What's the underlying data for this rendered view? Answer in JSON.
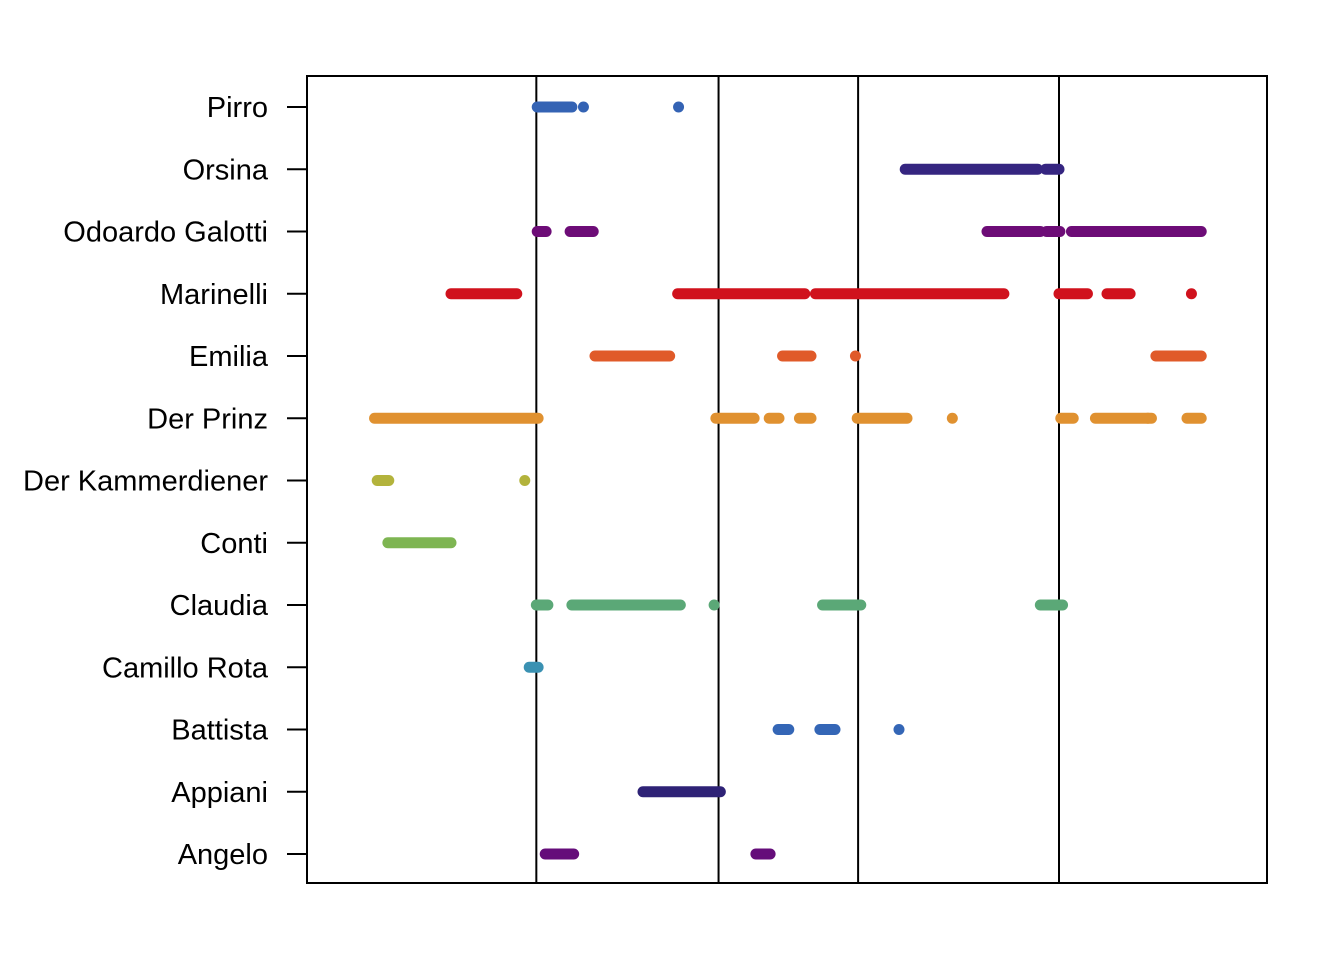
{
  "chart_data": {
    "type": "scatter",
    "title": "",
    "xlabel": "",
    "ylabel": "",
    "xlim": [
      0,
      1
    ],
    "grid": false,
    "legend": "none",
    "act_boundaries": [
      0.218,
      0.423,
      0.58,
      0.806
    ],
    "categories": [
      "Angelo",
      "Appiani",
      "Battista",
      "Camillo Rota",
      "Claudia",
      "Conti",
      "Der Kammerdiener",
      "Der Prinz",
      "Emilia",
      "Marinelli",
      "Odoardo Galotti",
      "Orsina",
      "Pirro"
    ],
    "series": [
      {
        "category": "Angelo",
        "color": "#650d7a",
        "segments": [
          [
            0.228,
            0.26
          ],
          [
            0.465,
            0.481
          ]
        ],
        "points": []
      },
      {
        "category": "Appiani",
        "color": "#2e2276",
        "segments": [
          [
            0.338,
            0.425
          ]
        ],
        "points": []
      },
      {
        "category": "Battista",
        "color": "#3466b6",
        "segments": [
          [
            0.49,
            0.502
          ],
          [
            0.537,
            0.554
          ]
        ],
        "points": [
          0.626
        ]
      },
      {
        "category": "Camillo Rota",
        "color": "#3a91b2",
        "segments": [
          [
            0.21,
            0.22
          ]
        ],
        "points": []
      },
      {
        "category": "Claudia",
        "color": "#5ba877",
        "segments": [
          [
            0.218,
            0.231
          ],
          [
            0.258,
            0.38
          ],
          [
            0.54,
            0.583
          ],
          [
            0.785,
            0.81
          ]
        ],
        "points": [
          0.418
        ]
      },
      {
        "category": "Conti",
        "color": "#7eb552",
        "segments": [
          [
            0.051,
            0.122
          ]
        ],
        "points": []
      },
      {
        "category": "Der Kammerdiener",
        "color": "#b3b33c",
        "segments": [
          [
            0.039,
            0.052
          ]
        ],
        "points": [
          0.205
        ]
      },
      {
        "category": "Der Prinz",
        "color": "#e09130",
        "segments": [
          [
            0.036,
            0.22
          ],
          [
            0.42,
            0.463
          ],
          [
            0.48,
            0.491
          ],
          [
            0.514,
            0.527
          ],
          [
            0.579,
            0.635
          ],
          [
            0.808,
            0.822
          ],
          [
            0.847,
            0.91
          ],
          [
            0.95,
            0.966
          ]
        ],
        "points": [
          0.686,
          0.906
        ]
      },
      {
        "category": "Emilia",
        "color": "#e05a29",
        "segments": [
          [
            0.284,
            0.368
          ],
          [
            0.495,
            0.527
          ],
          [
            0.915,
            0.966
          ]
        ],
        "points": [
          0.577
        ]
      },
      {
        "category": "Marinelli",
        "color": "#d0121d",
        "segments": [
          [
            0.122,
            0.196
          ],
          [
            0.377,
            0.52
          ],
          [
            0.532,
            0.744
          ],
          [
            0.806,
            0.838
          ],
          [
            0.86,
            0.886
          ]
        ],
        "points": [
          0.955
        ]
      },
      {
        "category": "Odoardo Galotti",
        "color": "#6d0c77",
        "segments": [
          [
            0.219,
            0.229
          ],
          [
            0.256,
            0.282
          ],
          [
            0.725,
            0.785
          ],
          [
            0.792,
            0.807
          ],
          [
            0.82,
            0.966
          ]
        ],
        "points": []
      },
      {
        "category": "Orsina",
        "color": "#352580",
        "segments": [
          [
            0.633,
            0.782
          ],
          [
            0.791,
            0.806
          ]
        ],
        "points": []
      },
      {
        "category": "Pirro",
        "color": "#3463b4",
        "segments": [
          [
            0.219,
            0.258
          ]
        ],
        "points": [
          0.221,
          0.271,
          0.378
        ]
      }
    ]
  }
}
